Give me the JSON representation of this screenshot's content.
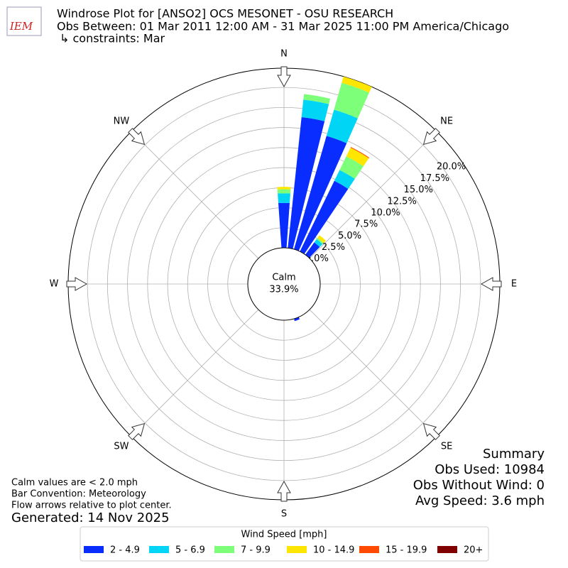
{
  "chart_data": {
    "type": "windrose",
    "logo": "IEM",
    "title": [
      "Windrose Plot for [ANSO2] OCS MESONET - OSU RESEARCH",
      "Obs Between: 01 Mar 2011 12:00 AM - 31 Mar 2025 11:00 PM America/Chicago",
      "↳ constraints: Mar"
    ],
    "directions": [
      0,
      10,
      20,
      30,
      40,
      160
    ],
    "series": [
      {
        "name": "2 - 4.9",
        "color": "#0a2dff",
        "values": [
          5.6,
          16.4,
          14.7,
          9.8,
          1.9,
          0.3
        ]
      },
      {
        "name": "5 - 6.9",
        "color": "#00d5f5",
        "values": [
          1.2,
          2.2,
          3.4,
          1.5,
          0.5,
          0
        ]
      },
      {
        "name": "7 - 9.9",
        "color": "#7dff7a",
        "values": [
          0.5,
          0.7,
          3.5,
          1.9,
          0.2,
          0
        ]
      },
      {
        "name": "10 - 14.9",
        "color": "#ffe600",
        "values": [
          0.3,
          0,
          0.8,
          1.2,
          0.4,
          0
        ]
      },
      {
        "name": "15 - 19.9",
        "color": "#ff4a00",
        "values": [
          0,
          0,
          0,
          0.1,
          0,
          0
        ]
      },
      {
        "name": "20+",
        "color": "#800000",
        "values": [
          0,
          0,
          0,
          0,
          0,
          0
        ]
      }
    ],
    "rlim": [
      0,
      22.4
    ],
    "rticks": [
      {
        "value": 0,
        "label": "0.0%"
      },
      {
        "value": 2.5,
        "label": "2.5%"
      },
      {
        "value": 5,
        "label": "5.0%"
      },
      {
        "value": 7.5,
        "label": "7.5%"
      },
      {
        "value": 10,
        "label": "10.0%"
      },
      {
        "value": 12.5,
        "label": "12.5%"
      },
      {
        "value": 15,
        "label": "15.0%"
      },
      {
        "value": 17.5,
        "label": "17.5%"
      },
      {
        "value": 20,
        "label": "20.0%"
      }
    ],
    "grid": true,
    "compass": [
      "N",
      "NE",
      "E",
      "SE",
      "S",
      "SW",
      "W",
      "NW"
    ],
    "calm": {
      "label": "Calm",
      "value": 33.9,
      "value_label": "33.9%"
    },
    "legend_title": "Wind Speed [mph]",
    "notes": [
      "Calm values are < 2.0 mph",
      "Bar Convention: Meteorology",
      "Flow arrows relative to plot center."
    ],
    "generated": "Generated: 14 Nov 2025",
    "summary": [
      "Summary",
      "Obs Used: 10984",
      "Obs Without Wind: 0",
      "Avg Speed: 3.6 mph"
    ]
  }
}
